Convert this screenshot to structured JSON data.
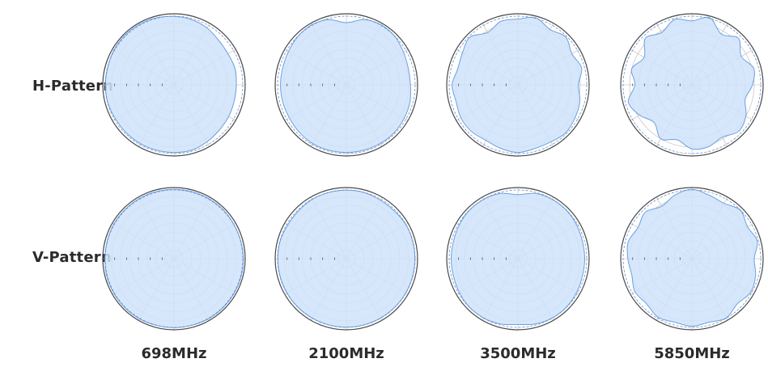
{
  "row_labels": [
    "H-Pattern",
    "V-Pattern"
  ],
  "freq_labels": [
    "698MHz",
    "2100MHz",
    "3500MHz",
    "5850MHz"
  ],
  "colors": {
    "fill": "#cfe3fa",
    "outline": "#6d9fe0",
    "grid": "#b7b7b7",
    "ring": "#4a4a4a",
    "dashed": "#6b8fc8"
  },
  "chart_data": [
    {
      "type": "polar-area",
      "pattern": "H-Pattern",
      "frequency": "698MHz",
      "angles_deg": [
        0,
        15,
        30,
        45,
        60,
        75,
        90,
        105,
        120,
        135,
        150,
        165,
        180,
        195,
        210,
        225,
        240,
        255,
        270,
        285,
        300,
        315,
        330,
        345
      ],
      "values_db": [
        -1.5,
        -2,
        -3,
        -4.5,
        -5,
        -4.5,
        -5,
        -5,
        -4.5,
        -4,
        -3,
        -2,
        -2,
        -2,
        -2,
        -2,
        -2,
        -1.5,
        -1.5,
        -1.5,
        -1,
        -0.8,
        -0.8,
        -1
      ]
    },
    {
      "type": "polar-area",
      "pattern": "H-Pattern",
      "frequency": "2100MHz",
      "angles_deg": [
        0,
        15,
        30,
        45,
        60,
        75,
        90,
        105,
        120,
        135,
        150,
        165,
        180,
        195,
        210,
        225,
        240,
        255,
        270,
        285,
        300,
        315,
        330,
        345
      ],
      "values_db": [
        -5,
        -2,
        -1,
        -1.5,
        -3,
        -4,
        -4,
        -3,
        -2.5,
        -2,
        -2,
        -2,
        -2,
        -2,
        -2,
        -2.5,
        -3,
        -3,
        -3,
        -3,
        -2.5,
        -1.5,
        -1,
        -2
      ]
    },
    {
      "type": "polar-area",
      "pattern": "H-Pattern",
      "frequency": "3500MHz",
      "angles_deg": [
        0,
        15,
        30,
        45,
        60,
        75,
        90,
        105,
        120,
        135,
        150,
        165,
        180,
        195,
        210,
        225,
        240,
        255,
        270,
        285,
        300,
        315,
        330,
        345
      ],
      "values_db": [
        -3,
        -1,
        -4,
        -2,
        -5,
        -3,
        -6,
        -4,
        -3,
        -2,
        -3,
        -3,
        -2,
        -3,
        -4,
        -3,
        -3,
        -4,
        -3,
        -5,
        -4,
        -2,
        -6,
        -3
      ]
    },
    {
      "type": "polar-area",
      "pattern": "H-Pattern",
      "frequency": "5850MHz",
      "angles_deg": [
        0,
        15,
        30,
        45,
        60,
        75,
        90,
        105,
        120,
        135,
        150,
        165,
        180,
        195,
        210,
        225,
        240,
        255,
        270,
        285,
        300,
        315,
        330,
        345
      ],
      "values_db": [
        -4,
        -1,
        -7,
        -3,
        -8,
        -4,
        -6,
        -9,
        -5,
        -3,
        -6,
        -4,
        -4,
        -8,
        -5,
        -10,
        -6,
        -3,
        -8,
        -5,
        -9,
        -3,
        -6,
        -2
      ]
    },
    {
      "type": "polar-area",
      "pattern": "V-Pattern",
      "frequency": "698MHz",
      "angles_deg": [
        0,
        15,
        30,
        45,
        60,
        75,
        90,
        105,
        120,
        135,
        150,
        165,
        180,
        195,
        210,
        225,
        240,
        255,
        270,
        285,
        300,
        315,
        330,
        345
      ],
      "values_db": [
        -1,
        -1,
        -1,
        -1,
        -1.2,
        -1.2,
        -1,
        -1,
        -1,
        -1,
        -1,
        -1.2,
        -1.2,
        -1.2,
        -1,
        -1,
        -1,
        -1,
        -1.2,
        -1.2,
        -1,
        -1,
        -1,
        -1
      ]
    },
    {
      "type": "polar-area",
      "pattern": "V-Pattern",
      "frequency": "2100MHz",
      "angles_deg": [
        0,
        15,
        30,
        45,
        60,
        75,
        90,
        105,
        120,
        135,
        150,
        165,
        180,
        195,
        210,
        225,
        240,
        255,
        270,
        285,
        300,
        315,
        330,
        345
      ],
      "values_db": [
        -1.5,
        -1.5,
        -2,
        -2,
        -1.5,
        -1.5,
        -1.5,
        -1.5,
        -1.5,
        -1.5,
        -1.5,
        -1.5,
        -1.5,
        -1.5,
        -1.5,
        -1.5,
        -1.5,
        -1.5,
        -1.5,
        -1.5,
        -2,
        -2,
        -1.5,
        -1.5
      ]
    },
    {
      "type": "polar-area",
      "pattern": "V-Pattern",
      "frequency": "3500MHz",
      "angles_deg": [
        0,
        15,
        30,
        45,
        60,
        75,
        90,
        105,
        120,
        135,
        150,
        165,
        180,
        195,
        210,
        225,
        240,
        255,
        270,
        285,
        300,
        315,
        330,
        345
      ],
      "values_db": [
        -4,
        -2,
        -1.5,
        -1.5,
        -2,
        -2.5,
        -2.5,
        -2.5,
        -2,
        -1.5,
        -1.5,
        -2,
        -3,
        -2,
        -1.5,
        -1.5,
        -2,
        -2.5,
        -2.5,
        -2.5,
        -2,
        -1.5,
        -1.5,
        -2
      ]
    },
    {
      "type": "polar-area",
      "pattern": "V-Pattern",
      "frequency": "5850MHz",
      "angles_deg": [
        0,
        15,
        30,
        45,
        60,
        75,
        90,
        105,
        120,
        135,
        150,
        165,
        180,
        195,
        210,
        225,
        240,
        255,
        270,
        285,
        300,
        315,
        330,
        345
      ],
      "values_db": [
        -1,
        -3,
        -4,
        -1.5,
        -4,
        -2,
        -5,
        -3,
        -2,
        -4,
        -1.5,
        -3,
        -2,
        -3,
        -2,
        -4,
        -3,
        -5,
        -4,
        -3,
        -5,
        -3,
        -6,
        -3
      ]
    }
  ]
}
